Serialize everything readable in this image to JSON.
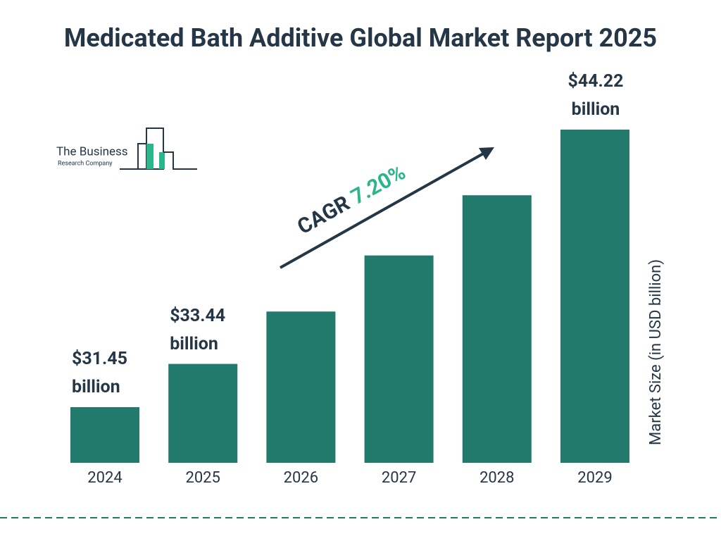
{
  "chart_data": {
    "type": "bar",
    "title": "Medicated Bath Additive Global Market Report 2025",
    "categories": [
      "2024",
      "2025",
      "2026",
      "2027",
      "2028",
      "2029"
    ],
    "values": [
      31.45,
      33.44,
      35.85,
      38.43,
      41.2,
      44.22
    ],
    "value_labels": [
      "$31.45 billion",
      "$33.44 billion",
      null,
      null,
      null,
      "$44.22 billion"
    ],
    "color": "#217a6b",
    "y_axis_label": "Market Size (in USD billion)",
    "annotation": {
      "label": "CAGR",
      "value": "7.20%"
    },
    "logo": {
      "line1": "The Business",
      "line2": "Research Company"
    }
  }
}
